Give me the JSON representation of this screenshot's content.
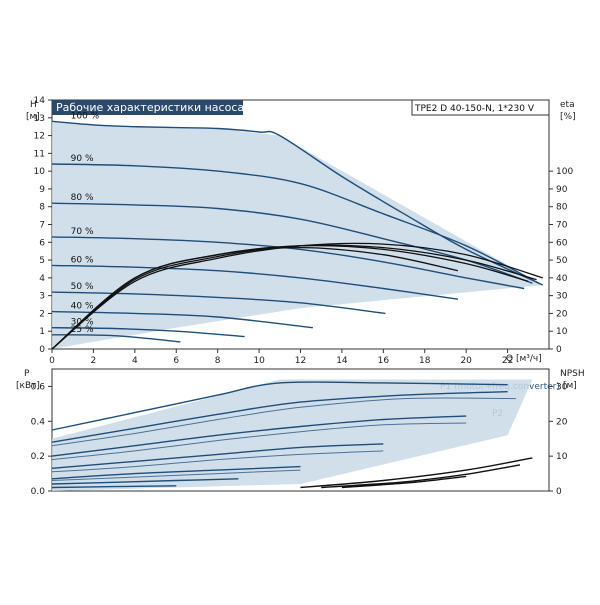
{
  "colors": {
    "envelope_fill": "#c9d9e8",
    "curve_blue": "#1f4e79",
    "curve_dark": "#111111",
    "title_bg": "#2b4a6b",
    "frame": "#333333",
    "power_label": "#2e5a8a"
  },
  "chart_data": [
    {
      "type": "line",
      "title": "Рабочие характеристики насоса",
      "model": "TPE2 D 40-150-N, 1*230 V",
      "ylabel": "H",
      "ylabel_unit": "[м]",
      "y2label": "eta",
      "y2label_unit": "[%]",
      "xlabel": "Q [м³/ч]",
      "xlim": [
        0,
        24
      ],
      "ylim": [
        0,
        14
      ],
      "y2lim": [
        0,
        140
      ],
      "x_ticks": [
        0,
        2,
        4,
        6,
        8,
        10,
        12,
        14,
        16,
        18,
        20,
        22
      ],
      "y_ticks": [
        0,
        1,
        2,
        3,
        4,
        5,
        6,
        7,
        8,
        9,
        10,
        11,
        12,
        13,
        14
      ],
      "y2_ticks": [
        0,
        10,
        20,
        30,
        40,
        50,
        60,
        70,
        80,
        90,
        100
      ],
      "envelope": [
        [
          0,
          12.8
        ],
        [
          4,
          12.5
        ],
        [
          8,
          12.4
        ],
        [
          11,
          12.0
        ],
        [
          23.7,
          3.6
        ],
        [
          12,
          2.3
        ],
        [
          6,
          1.2
        ],
        [
          3,
          0.6
        ],
        [
          1,
          0.2
        ],
        [
          0,
          0
        ]
      ],
      "series": [
        {
          "name": "100 %",
          "x": [
            0,
            2,
            4,
            6,
            8,
            10,
            11,
            14,
            17,
            20,
            23.7
          ],
          "values": [
            12.8,
            12.6,
            12.5,
            12.45,
            12.4,
            12.2,
            12.0,
            9.7,
            7.6,
            5.6,
            3.6
          ]
        },
        {
          "name": "90 %",
          "x": [
            0,
            4,
            8,
            12,
            16,
            20,
            23.5
          ],
          "values": [
            10.4,
            10.3,
            10.0,
            9.3,
            7.6,
            5.8,
            3.7
          ]
        },
        {
          "name": "80 %",
          "x": [
            0,
            4,
            8,
            12,
            16,
            20,
            23.2
          ],
          "values": [
            8.2,
            8.1,
            7.9,
            7.3,
            6.2,
            5.0,
            3.7
          ]
        },
        {
          "name": "70 %",
          "x": [
            0,
            4,
            8,
            12,
            16,
            20,
            22.8
          ],
          "values": [
            6.3,
            6.2,
            6.0,
            5.6,
            4.9,
            4.0,
            3.4
          ]
        },
        {
          "name": "60 %",
          "x": [
            0,
            4,
            8,
            12,
            16,
            19.6
          ],
          "values": [
            4.7,
            4.6,
            4.4,
            4.0,
            3.4,
            2.8
          ]
        },
        {
          "name": "50 %",
          "x": [
            0,
            4,
            8,
            12,
            16.1
          ],
          "values": [
            3.2,
            3.1,
            2.9,
            2.6,
            2.0
          ]
        },
        {
          "name": "40 %",
          "x": [
            0,
            4,
            8,
            12.6
          ],
          "values": [
            2.1,
            2.0,
            1.8,
            1.2
          ]
        },
        {
          "name": "30 %",
          "x": [
            0,
            3,
            6,
            9.3
          ],
          "values": [
            1.2,
            1.15,
            1.0,
            0.7
          ]
        },
        {
          "name": "25 %",
          "x": [
            0,
            3,
            6.2
          ],
          "values": [
            0.8,
            0.75,
            0.4
          ]
        }
      ],
      "efficiency": [
        {
          "x": [
            0,
            4,
            8,
            12,
            16,
            20,
            23.7
          ],
          "values": [
            0,
            38,
            51,
            58,
            59,
            53,
            40
          ]
        },
        {
          "x": [
            0,
            4,
            8,
            12,
            16,
            20,
            23.4
          ],
          "values": [
            0,
            39,
            52,
            58,
            57,
            50,
            39
          ]
        },
        {
          "x": [
            0,
            4,
            8,
            12,
            16,
            20,
            23
          ],
          "values": [
            0,
            40,
            53,
            58,
            56,
            48,
            38
          ]
        },
        {
          "x": [
            0,
            4,
            8,
            12,
            16,
            19.6
          ],
          "values": [
            0,
            40,
            53,
            57,
            53,
            44
          ]
        }
      ]
    },
    {
      "type": "line",
      "ylabel": "P",
      "ylabel_unit": "[кВт]",
      "y2label": "NPSH",
      "y2label_unit": "[м]",
      "xlim": [
        0,
        24
      ],
      "ylim": [
        0,
        0.7
      ],
      "y2lim": [
        0,
        35
      ],
      "y_ticks": [
        0.0,
        0.2,
        0.4,
        0.6
      ],
      "y_tick_labels": [
        "0.0",
        "0.2",
        "0.4",
        "0.6"
      ],
      "y2_ticks": [
        0,
        10,
        20,
        30
      ],
      "envelope": [
        [
          0,
          0.3
        ],
        [
          11,
          0.64
        ],
        [
          23.2,
          0.64
        ],
        [
          22,
          0.32
        ],
        [
          12,
          0.04
        ],
        [
          0,
          0
        ]
      ],
      "labels": {
        "p1": "P1 (motor+freq.converter)",
        "p2": "P2"
      },
      "p1_series": [
        {
          "x": [
            0,
            4,
            8,
            11,
            16,
            22
          ],
          "values": [
            0.35,
            0.45,
            0.55,
            0.62,
            0.62,
            0.61
          ]
        },
        {
          "x": [
            0,
            4,
            8,
            12,
            17,
            22
          ],
          "values": [
            0.28,
            0.36,
            0.44,
            0.51,
            0.55,
            0.57
          ]
        },
        {
          "x": [
            0,
            4,
            8,
            12,
            16,
            20
          ],
          "values": [
            0.2,
            0.26,
            0.32,
            0.37,
            0.41,
            0.43
          ]
        },
        {
          "x": [
            0,
            4,
            8,
            12,
            16
          ],
          "values": [
            0.13,
            0.17,
            0.21,
            0.25,
            0.27
          ]
        },
        {
          "x": [
            0,
            4,
            8,
            12
          ],
          "values": [
            0.07,
            0.1,
            0.12,
            0.14
          ]
        },
        {
          "x": [
            0,
            3,
            6,
            9
          ],
          "values": [
            0.04,
            0.05,
            0.06,
            0.07
          ]
        },
        {
          "x": [
            0,
            3,
            6
          ],
          "values": [
            0.02,
            0.025,
            0.03
          ]
        }
      ],
      "p2_series": [
        {
          "x": [
            0,
            4,
            8,
            12,
            17,
            22.4
          ],
          "values": [
            0.26,
            0.33,
            0.41,
            0.48,
            0.53,
            0.53
          ]
        },
        {
          "x": [
            0,
            4,
            8,
            12,
            16,
            20
          ],
          "values": [
            0.18,
            0.23,
            0.29,
            0.34,
            0.38,
            0.39
          ]
        },
        {
          "x": [
            0,
            4,
            8,
            12,
            16
          ],
          "values": [
            0.11,
            0.14,
            0.18,
            0.21,
            0.23
          ]
        },
        {
          "x": [
            0,
            4,
            8,
            12
          ],
          "values": [
            0.06,
            0.08,
            0.1,
            0.12
          ]
        }
      ],
      "npsh_series": [
        {
          "x": [
            12,
            16,
            20,
            23.2
          ],
          "values": [
            1,
            3,
            6,
            9.5
          ]
        },
        {
          "x": [
            13,
            17,
            20,
            22.6
          ],
          "values": [
            1,
            2.6,
            4.8,
            7.5
          ]
        },
        {
          "x": [
            14,
            17.5,
            20
          ],
          "values": [
            1,
            2.5,
            4.2
          ]
        }
      ]
    }
  ]
}
